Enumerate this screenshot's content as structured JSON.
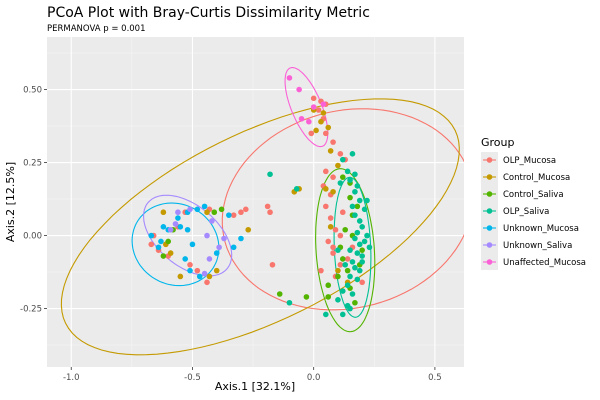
{
  "chart_data": {
    "type": "scatter",
    "title": "PCoA Plot with Bray-Curtis Dissimilarity Metric",
    "subtitle": "PERMANOVA p = 0.001",
    "xlabel": "Axis.1   [32.1%]",
    "ylabel": "Axis.2   [12.5%]",
    "xlim": [
      -1.1,
      0.62
    ],
    "ylim": [
      -0.45,
      0.68
    ],
    "xticks": [
      -1.0,
      -0.5,
      0.0,
      0.5
    ],
    "xtick_labels": [
      "-1.0",
      "-0.5",
      "0.0",
      "0.5"
    ],
    "yticks": [
      -0.25,
      0.0,
      0.25,
      0.5
    ],
    "ytick_labels": [
      "-0.25",
      "0.00",
      "0.25",
      "0.50"
    ],
    "grid": true,
    "legend": {
      "title": "Group",
      "placement": "right"
    },
    "series": [
      {
        "name": "OLP_Mucosa",
        "color": "#F8766D",
        "ellipse": {
          "cx": 0.14,
          "cy": 0.09,
          "rx": 0.52,
          "ry": 0.34,
          "angle": 8
        },
        "points": [
          [
            0.0,
            0.47
          ],
          [
            0.03,
            0.46
          ],
          [
            0.05,
            0.45
          ],
          [
            0.02,
            0.43
          ],
          [
            0.04,
            0.4
          ],
          [
            -0.01,
            0.35
          ],
          [
            0.05,
            0.35
          ],
          [
            0.08,
            0.32
          ],
          [
            0.11,
            0.28
          ],
          [
            0.13,
            0.26
          ],
          [
            0.05,
            0.22
          ],
          [
            0.08,
            0.2
          ],
          [
            0.04,
            0.17
          ],
          [
            0.07,
            0.14
          ],
          [
            0.05,
            0.1
          ],
          [
            0.07,
            0.06
          ],
          [
            0.09,
            0.02
          ],
          [
            0.06,
            -0.02
          ],
          [
            0.08,
            -0.06
          ],
          [
            0.11,
            -0.1
          ],
          [
            0.09,
            -0.14
          ],
          [
            0.14,
            -0.08
          ],
          [
            0.16,
            -0.04
          ],
          [
            0.12,
            0.08
          ],
          [
            0.2,
            -0.16
          ],
          [
            -0.17,
            -0.1
          ],
          [
            -0.19,
            0.1
          ],
          [
            -0.18,
            0.08
          ],
          [
            -0.28,
            0.09
          ],
          [
            -0.3,
            0.08
          ],
          [
            -0.33,
            0.07
          ],
          [
            -0.66,
            0.0
          ],
          [
            -0.67,
            -0.03
          ],
          [
            -0.64,
            -0.05
          ],
          [
            -0.6,
            -0.07
          ],
          [
            -0.56,
            0.03
          ],
          [
            -0.53,
            0.08
          ],
          [
            -0.44,
            -0.16
          ],
          [
            -0.48,
            -0.12
          ],
          [
            -0.51,
            -0.1
          ],
          [
            -0.43,
            0.09
          ],
          [
            0.03,
            -0.12
          ],
          [
            0.08,
            -0.04
          ],
          [
            0.11,
            0.0
          ]
        ]
      },
      {
        "name": "Control_Mucosa",
        "color": "#C49A00",
        "ellipse": {
          "cx": -0.22,
          "cy": 0.03,
          "rx": 0.87,
          "ry": 0.33,
          "angle": 21
        },
        "points": [
          [
            -0.27,
            0.02
          ],
          [
            -0.06,
            0.16
          ],
          [
            -0.08,
            0.15
          ],
          [
            0.0,
            0.43
          ],
          [
            0.04,
            0.42
          ],
          [
            0.03,
            0.39
          ],
          [
            0.06,
            0.37
          ],
          [
            0.01,
            0.36
          ],
          [
            0.07,
            0.29
          ],
          [
            0.1,
            0.24
          ],
          [
            0.05,
            0.16
          ],
          [
            0.08,
            0.15
          ],
          [
            0.07,
            0.03
          ],
          [
            0.1,
            -0.12
          ],
          [
            0.14,
            -0.16
          ],
          [
            -0.44,
            0.08
          ],
          [
            -0.4,
            -0.12
          ],
          [
            -0.43,
            -0.14
          ],
          [
            -0.59,
            -0.06
          ],
          [
            -0.61,
            -0.03
          ],
          [
            -0.62,
            0.08
          ],
          [
            -0.55,
            -0.14
          ]
        ]
      },
      {
        "name": "Control_Saliva",
        "color": "#53B400",
        "ellipse": {
          "cx": 0.13,
          "cy": -0.05,
          "rx": 0.12,
          "ry": 0.28,
          "angle": 5
        },
        "points": [
          [
            -0.14,
            -0.2
          ],
          [
            -0.03,
            -0.21
          ],
          [
            0.12,
            0.2
          ],
          [
            0.15,
            0.18
          ],
          [
            0.15,
            0.13
          ],
          [
            0.16,
            0.07
          ],
          [
            0.13,
            0.02
          ],
          [
            0.11,
            -0.04
          ],
          [
            0.12,
            -0.08
          ],
          [
            0.1,
            -0.14
          ],
          [
            0.14,
            -0.12
          ],
          [
            0.15,
            -0.18
          ],
          [
            0.17,
            -0.23
          ],
          [
            0.2,
            -0.05
          ],
          [
            0.19,
            -0.1
          ],
          [
            0.16,
            -0.0
          ],
          [
            0.06,
            -0.17
          ],
          [
            0.06,
            -0.21
          ],
          [
            0.18,
            0.1
          ],
          [
            -0.38,
            0.09
          ],
          [
            -0.41,
            0.08
          ],
          [
            -0.58,
            0.02
          ],
          [
            -0.6,
            -0.02
          ],
          [
            -0.62,
            -0.07
          ]
        ]
      },
      {
        "name": "OLP_Saliva",
        "color": "#00C094",
        "ellipse": {
          "cx": 0.16,
          "cy": -0.04,
          "rx": 0.075,
          "ry": 0.24,
          "angle": 3
        },
        "points": [
          [
            -0.07,
            0.16
          ],
          [
            -0.1,
            -0.23
          ],
          [
            0.14,
            0.22
          ],
          [
            0.17,
            0.21
          ],
          [
            0.15,
            0.19
          ],
          [
            0.18,
            0.17
          ],
          [
            0.17,
            0.15
          ],
          [
            0.19,
            0.12
          ],
          [
            0.21,
            0.09
          ],
          [
            0.17,
            0.07
          ],
          [
            0.19,
            0.05
          ],
          [
            0.2,
            0.03
          ],
          [
            0.18,
            0.01
          ],
          [
            0.17,
            -0.01
          ],
          [
            0.21,
            -0.02
          ],
          [
            0.19,
            -0.03
          ],
          [
            0.15,
            -0.05
          ],
          [
            0.18,
            -0.06
          ],
          [
            0.2,
            -0.07
          ],
          [
            0.16,
            -0.09
          ],
          [
            0.13,
            -0.1
          ],
          [
            0.17,
            -0.11
          ],
          [
            0.19,
            -0.12
          ],
          [
            0.15,
            -0.14
          ],
          [
            0.18,
            -0.15
          ],
          [
            0.14,
            -0.17
          ],
          [
            0.12,
            -0.19
          ],
          [
            0.16,
            -0.2
          ],
          [
            0.14,
            -0.24
          ],
          [
            0.12,
            -0.27
          ],
          [
            0.22,
            0.0
          ],
          [
            0.2,
            -0.09
          ],
          [
            0.23,
            -0.04
          ],
          [
            0.16,
            0.1
          ],
          [
            0.22,
            0.12
          ],
          [
            0.15,
            -0.25
          ],
          [
            0.1,
            -0.22
          ],
          [
            0.12,
            0.26
          ],
          [
            0.16,
            0.28
          ],
          [
            0.1,
            -0.05
          ],
          [
            -0.18,
            0.21
          ],
          [
            0.05,
            -0.27
          ],
          [
            0.11,
            0.18
          ]
        ]
      },
      {
        "name": "Unknown_Mucosa",
        "color": "#00B6EB",
        "ellipse": {
          "cx": -0.57,
          "cy": -0.03,
          "rx": 0.18,
          "ry": 0.14,
          "angle": -10
        },
        "points": [
          [
            -0.56,
            0.06
          ],
          [
            -0.52,
            0.08
          ],
          [
            -0.48,
            0.09
          ],
          [
            -0.45,
            0.1
          ],
          [
            -0.55,
            0.03
          ],
          [
            -0.6,
            0.02
          ],
          [
            -0.62,
            0.03
          ],
          [
            -0.67,
            0.0
          ],
          [
            -0.63,
            -0.02
          ],
          [
            -0.64,
            -0.04
          ],
          [
            -0.53,
            -0.08
          ],
          [
            -0.51,
            -0.12
          ],
          [
            -0.47,
            -0.14
          ],
          [
            -0.4,
            -0.06
          ],
          [
            -0.35,
            0.07
          ],
          [
            -0.33,
            -0.04
          ],
          [
            -0.3,
            -0.01
          ],
          [
            -0.52,
            0.02
          ],
          [
            -0.5,
            -0.03
          ]
        ]
      },
      {
        "name": "Unknown_Saliva",
        "color": "#A58AFF",
        "ellipse": {
          "cx": -0.52,
          "cy": 0.0,
          "rx": 0.2,
          "ry": 0.11,
          "angle": -30
        },
        "points": [
          [
            -0.56,
            0.08
          ],
          [
            -0.51,
            0.09
          ],
          [
            -0.57,
            0.04
          ],
          [
            -0.59,
            0.02
          ],
          [
            -0.42,
            0.05
          ],
          [
            -0.45,
            -0.13
          ],
          [
            -0.37,
            -0.01
          ],
          [
            -0.39,
            -0.04
          ],
          [
            -0.44,
            0.0
          ],
          [
            -0.43,
            -0.08
          ]
        ]
      },
      {
        "name": "Unaffected_Mucosa",
        "color": "#FB61D7",
        "ellipse": {
          "cx": -0.03,
          "cy": 0.44,
          "rx": 0.15,
          "ry": 0.06,
          "angle": -62
        },
        "points": [
          [
            -0.1,
            0.54
          ],
          [
            -0.06,
            0.5
          ],
          [
            0.0,
            0.44
          ],
          [
            0.04,
            0.45
          ],
          [
            -0.05,
            0.4
          ],
          [
            -0.02,
            0.39
          ]
        ]
      }
    ]
  }
}
